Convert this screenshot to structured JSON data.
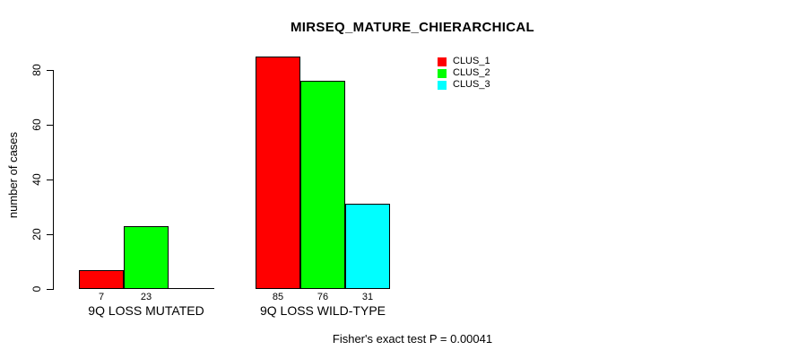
{
  "chart_data": {
    "type": "bar",
    "title": "MIRSEQ_MATURE_CHIERARCHICAL",
    "subtitle": "Fisher's exact test P = 0.00041",
    "ylabel": "number of cases",
    "xlabel": "",
    "ylim": [
      0,
      85
    ],
    "yticks": [
      0,
      20,
      40,
      60,
      80
    ],
    "grid": false,
    "categories": [
      "9Q LOSS MUTATED",
      "9Q LOSS WILD-TYPE"
    ],
    "series": [
      {
        "name": "CLUS_1",
        "color": "#ff0000",
        "values": [
          7,
          85
        ]
      },
      {
        "name": "CLUS_2",
        "color": "#00ff00",
        "values": [
          23,
          76
        ]
      },
      {
        "name": "CLUS_3",
        "color": "#00ffff",
        "values": [
          0,
          31
        ]
      }
    ],
    "bar_value_labels": [
      [
        "7",
        "23",
        ""
      ],
      [
        "85",
        "76",
        "31"
      ]
    ],
    "legend": {
      "position": "top-right",
      "entries": [
        "CLUS_1",
        "CLUS_2",
        "CLUS_3"
      ]
    }
  }
}
